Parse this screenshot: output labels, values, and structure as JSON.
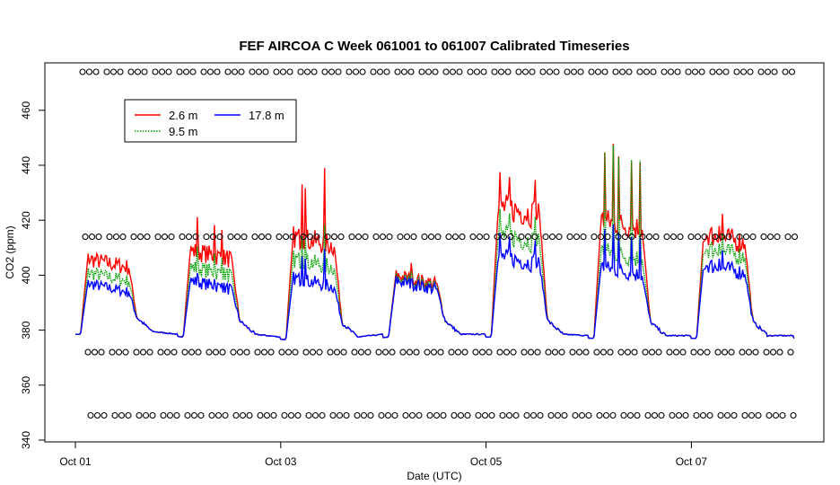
{
  "chart_data": {
    "type": "line",
    "title": "FEF AIRCOA C  Week 061001 to 061007  Calibrated Timeseries",
    "xlabel": "Date (UTC)",
    "ylabel": "CO2 (ppm)",
    "xlim_days": [
      0,
      7
    ],
    "ylim": [
      340,
      475
    ],
    "x_ticks": [
      {
        "day": 0,
        "label": "Oct 01"
      },
      {
        "day": 2,
        "label": "Oct 03"
      },
      {
        "day": 4,
        "label": "Oct 05"
      },
      {
        "day": 6,
        "label": "Oct 07"
      }
    ],
    "y_ticks": [
      340,
      360,
      380,
      400,
      420,
      440,
      460
    ],
    "legend_position": "top-left",
    "series": [
      {
        "name": "2.6 m",
        "color": "#ff0000",
        "day_peaks": [
          406,
          409,
          414,
          400,
          425,
          420,
          415
        ],
        "max_spikes": [
          411,
          423,
          438,
          407,
          435,
          448,
          423
        ]
      },
      {
        "name": "9.5 m",
        "color": "#00a000",
        "day_peaks": [
          401,
          403,
          406,
          399,
          415,
          409,
          410
        ],
        "max_spikes": [
          405,
          412,
          418,
          404,
          422,
          448,
          416
        ]
      },
      {
        "name": "17.8 m",
        "color": "#0000ff",
        "day_peaks": [
          397,
          398,
          399,
          398,
          407,
          403,
          404
        ],
        "max_spikes": [
          402,
          402,
          410,
          401,
          414,
          419,
          410
        ]
      }
    ],
    "night_levels": [
      378.5,
      377.5,
      376.5,
      377.5,
      377.5,
      377,
      377
    ],
    "calibration_marker_levels": [
      474,
      414,
      372,
      349
    ],
    "marker_symbol": "o"
  }
}
